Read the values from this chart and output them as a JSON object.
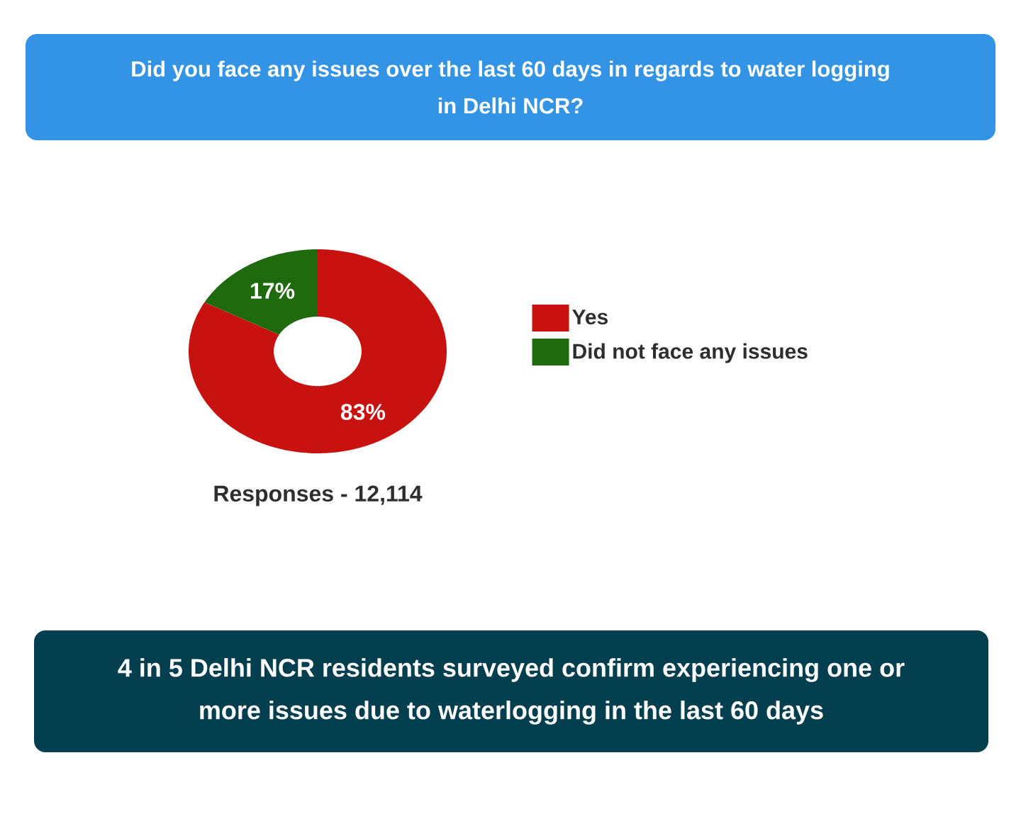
{
  "chart_data": {
    "type": "donut",
    "title": "Did you face any issues over the last 60 days in regards to water logging in Delhi NCR?",
    "categories": [
      "Yes",
      "Did not face any issues"
    ],
    "values": [
      83,
      17
    ],
    "value_labels": [
      "83%",
      "17%"
    ],
    "colors": [
      "#c8120f",
      "#1e6a0d"
    ],
    "legend": "right",
    "annotations": [
      "Responses - 12,114",
      "4 in 5 Delhi NCR residents surveyed confirm experiencing one or more issues due to waterlogging in the last 60 days"
    ]
  }
}
